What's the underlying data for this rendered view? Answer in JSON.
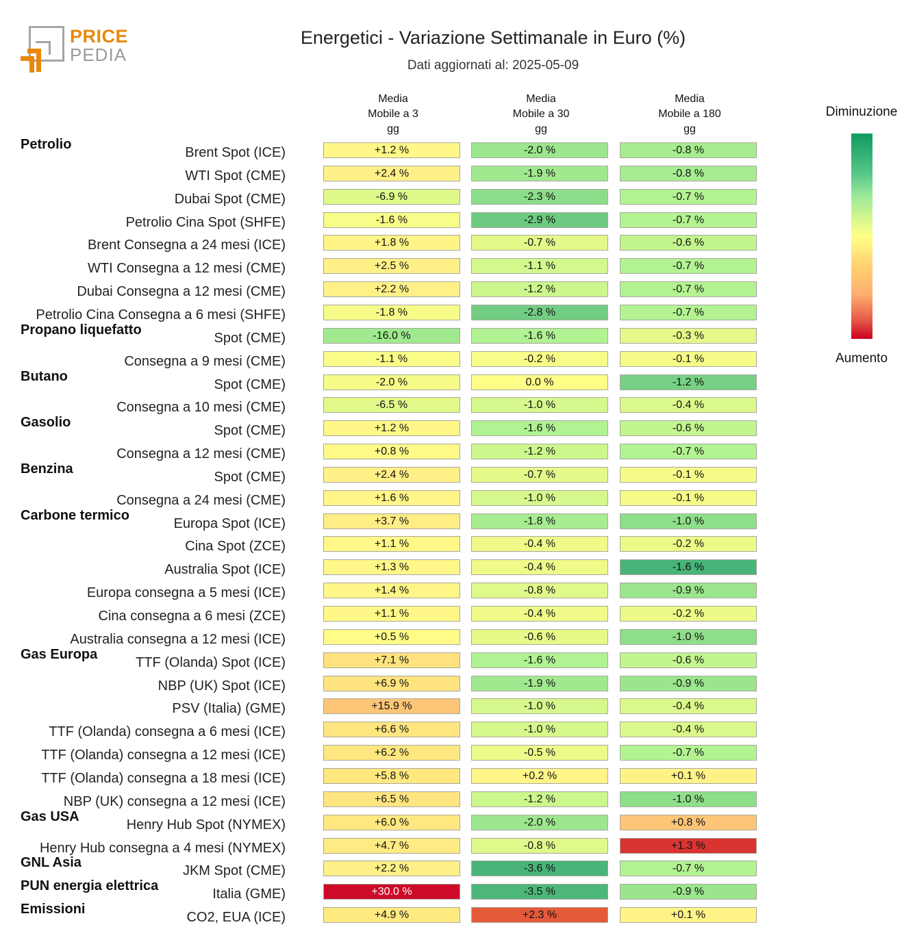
{
  "logo": {
    "line1": "PRICE",
    "line2": "PEDIA"
  },
  "header": {
    "title": "Energetici - Variazione Settimanale in Euro (%)",
    "subtitle": "Dati aggiornati al: 2025-05-09"
  },
  "legend": {
    "top": "Diminuzione",
    "bottom": "Aumento",
    "colors": {
      "decrease": "#0f9a60",
      "neutral": "#ffff88",
      "increase": "#cc0022"
    }
  },
  "chart_data": {
    "type": "heatmap",
    "title": "Energetici - Variazione Settimanale in Euro (%)",
    "subtitle": "Dati aggiornati al: 2025-05-09",
    "columns": [
      {
        "line1": "Media",
        "line2": "Mobile a 3",
        "line3": "gg"
      },
      {
        "line1": "Media",
        "line2": "Mobile a 30",
        "line3": "gg"
      },
      {
        "line1": "Media",
        "line2": "Mobile a 180",
        "line3": "gg"
      }
    ],
    "unit": "%",
    "rows": [
      {
        "group": "Petrolio",
        "label": "Brent Spot (ICE)",
        "values": [
          1.2,
          -2.0,
          -0.8
        ]
      },
      {
        "group": "",
        "label": "WTI Spot (CME)",
        "values": [
          2.4,
          -1.9,
          -0.8
        ]
      },
      {
        "group": "",
        "label": "Dubai Spot (CME)",
        "values": [
          -6.9,
          -2.3,
          -0.7
        ]
      },
      {
        "group": "",
        "label": "Petrolio Cina Spot (SHFE)",
        "values": [
          -1.6,
          -2.9,
          -0.7
        ]
      },
      {
        "group": "",
        "label": "Brent Consegna a 24 mesi (ICE)",
        "values": [
          1.8,
          -0.7,
          -0.6
        ]
      },
      {
        "group": "",
        "label": "WTI Consegna a 12 mesi (CME)",
        "values": [
          2.5,
          -1.1,
          -0.7
        ]
      },
      {
        "group": "",
        "label": "Dubai Consegna a 12 mesi (CME)",
        "values": [
          2.2,
          -1.2,
          -0.7
        ]
      },
      {
        "group": "",
        "label": "Petrolio Cina Consegna a 6 mesi (SHFE)",
        "values": [
          -1.8,
          -2.8,
          -0.7
        ]
      },
      {
        "group": "Propano liquefatto",
        "label": "Spot (CME)",
        "values": [
          -16.0,
          -1.6,
          -0.3
        ]
      },
      {
        "group": "",
        "label": "Consegna a 9 mesi (CME)",
        "values": [
          -1.1,
          -0.2,
          -0.1
        ]
      },
      {
        "group": "Butano",
        "label": "Spot (CME)",
        "values": [
          -2.0,
          0.0,
          -1.2
        ]
      },
      {
        "group": "",
        "label": "Consegna a 10 mesi (CME)",
        "values": [
          -6.5,
          -1.0,
          -0.4
        ]
      },
      {
        "group": "Gasolio",
        "label": "Spot (CME)",
        "values": [
          1.2,
          -1.6,
          -0.6
        ]
      },
      {
        "group": "",
        "label": "Consegna a 12 mesi (CME)",
        "values": [
          0.8,
          -1.2,
          -0.7
        ]
      },
      {
        "group": "Benzina",
        "label": "Spot (CME)",
        "values": [
          2.4,
          -0.7,
          -0.1
        ]
      },
      {
        "group": "",
        "label": "Consegna a 24 mesi (CME)",
        "values": [
          1.6,
          -1.0,
          -0.1
        ]
      },
      {
        "group": "Carbone termico",
        "label": "Europa Spot (ICE)",
        "values": [
          3.7,
          -1.8,
          -1.0
        ]
      },
      {
        "group": "",
        "label": "Cina Spot (ZCE)",
        "values": [
          1.1,
          -0.4,
          -0.2
        ]
      },
      {
        "group": "",
        "label": "Australia Spot (ICE)",
        "values": [
          1.3,
          -0.4,
          -1.6
        ]
      },
      {
        "group": "",
        "label": "Europa consegna a 5 mesi (ICE)",
        "values": [
          1.4,
          -0.8,
          -0.9
        ]
      },
      {
        "group": "",
        "label": "Cina consegna a 6 mesi (ZCE)",
        "values": [
          1.1,
          -0.4,
          -0.2
        ]
      },
      {
        "group": "",
        "label": "Australia consegna a 12 mesi (ICE)",
        "values": [
          0.5,
          -0.6,
          -1.0
        ]
      },
      {
        "group": "Gas Europa",
        "label": "TTF (Olanda) Spot (ICE)",
        "values": [
          7.1,
          -1.6,
          -0.6
        ]
      },
      {
        "group": "",
        "label": "NBP (UK) Spot (ICE)",
        "values": [
          6.9,
          -1.9,
          -0.9
        ]
      },
      {
        "group": "",
        "label": "PSV (Italia) (GME)",
        "values": [
          15.9,
          -1.0,
          -0.4
        ]
      },
      {
        "group": "",
        "label": "TTF (Olanda) consegna a 6 mesi (ICE)",
        "values": [
          6.6,
          -1.0,
          -0.4
        ]
      },
      {
        "group": "",
        "label": "TTF (Olanda) consegna a 12 mesi (ICE)",
        "values": [
          6.2,
          -0.5,
          -0.7
        ]
      },
      {
        "group": "",
        "label": "TTF (Olanda) consegna a 18 mesi (ICE)",
        "values": [
          5.8,
          0.2,
          0.1
        ]
      },
      {
        "group": "",
        "label": "NBP (UK) consegna a 12 mesi (ICE)",
        "values": [
          6.5,
          -1.2,
          -1.0
        ]
      },
      {
        "group": "Gas USA",
        "label": "Henry Hub Spot (NYMEX)",
        "values": [
          6.0,
          -2.0,
          0.8
        ]
      },
      {
        "group": "",
        "label": "Henry Hub consegna a 4 mesi (NYMEX)",
        "values": [
          4.7,
          -0.8,
          1.3
        ]
      },
      {
        "group": "GNL Asia",
        "label": "JKM Spot (CME)",
        "values": [
          2.2,
          -3.6,
          -0.7
        ]
      },
      {
        "group": "PUN energia elettrica",
        "label": "Italia (GME)",
        "values": [
          30.0,
          -3.5,
          -0.9
        ]
      },
      {
        "group": "Emissioni",
        "label": "CO2, EUA (ICE)",
        "values": [
          4.9,
          2.3,
          0.1
        ]
      }
    ]
  }
}
